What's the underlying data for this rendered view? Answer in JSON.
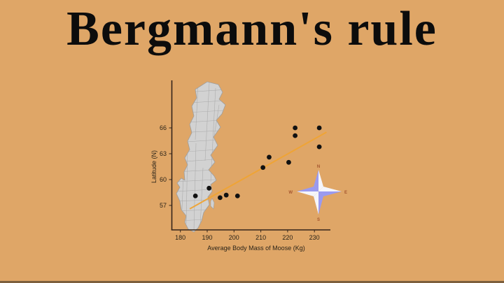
{
  "page": {
    "title": "Bergmann's rule",
    "background": "#dfa667",
    "title_color": "#0c0c0c",
    "bottom_strip_color": "#7d5f3d"
  },
  "chart_data": {
    "type": "scatter",
    "title": "",
    "xlabel": "Average Body Mass of Moose (Kg)",
    "ylabel": "Latitude (N)",
    "x_ticks": [
      180,
      190,
      200,
      210,
      220,
      230
    ],
    "y_ticks": [
      66,
      63,
      60,
      57
    ],
    "xlim": [
      177,
      236
    ],
    "ylim": [
      54.2,
      71.5
    ],
    "grid": false,
    "points": [
      {
        "x": 185.6,
        "y": 58.1
      },
      {
        "x": 190.7,
        "y": 59.0
      },
      {
        "x": 194.8,
        "y": 57.9
      },
      {
        "x": 197.1,
        "y": 58.2
      },
      {
        "x": 201.3,
        "y": 58.1
      },
      {
        "x": 210.8,
        "y": 61.4
      },
      {
        "x": 213.1,
        "y": 62.6
      },
      {
        "x": 220.4,
        "y": 62.0
      },
      {
        "x": 222.8,
        "y": 65.1
      },
      {
        "x": 222.8,
        "y": 66.0
      },
      {
        "x": 231.8,
        "y": 63.8
      },
      {
        "x": 231.8,
        "y": 66.0
      }
    ],
    "trendline": {
      "x1": 183.5,
      "y1": 56.6,
      "x2": 234.5,
      "y2": 65.5
    },
    "point_color": "#111111",
    "trend_color": "#f0a433",
    "axis_color": "#33241a",
    "map_overlay": "Sweden municipalities map",
    "map_fill": "#d2d2d2",
    "map_border": "#9e9e9e"
  },
  "compass": {
    "letters": {
      "n": "N",
      "e": "E",
      "s": "S",
      "w": "W"
    },
    "blue": "#9a9af0",
    "white": "#f5f5fa"
  }
}
